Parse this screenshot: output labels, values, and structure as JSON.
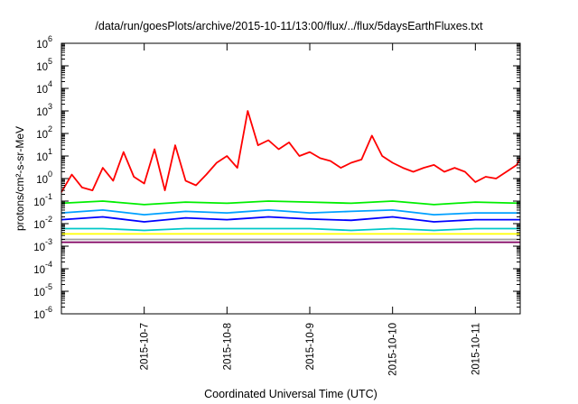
{
  "chart_data": {
    "type": "line",
    "title": "/data/run/goesPlots/archive/2015-10-11/13:00/flux/../flux/5daysEarthFluxes.txt",
    "xlabel": "Coordinated Universal Time (UTC)",
    "ylabel": "protons/cm²-s-sr-MeV",
    "yscale": "log",
    "ylim": [
      1e-06,
      1000000.0
    ],
    "xlim": [
      "2015-10-06 00:00",
      "2015-10-11 13:00"
    ],
    "ytick_labels": [
      {
        "mantissa": "10",
        "exponent": "-6"
      },
      {
        "mantissa": "10",
        "exponent": "-5"
      },
      {
        "mantissa": "10",
        "exponent": "-4"
      },
      {
        "mantissa": "10",
        "exponent": "-3"
      },
      {
        "mantissa": "10",
        "exponent": "-2"
      },
      {
        "mantissa": "10",
        "exponent": "-1"
      },
      {
        "mantissa": "10",
        "exponent": "0"
      },
      {
        "mantissa": "10",
        "exponent": "1"
      },
      {
        "mantissa": "10",
        "exponent": "2"
      },
      {
        "mantissa": "10",
        "exponent": "3"
      },
      {
        "mantissa": "10",
        "exponent": "4"
      },
      {
        "mantissa": "10",
        "exponent": "5"
      },
      {
        "mantissa": "10",
        "exponent": "6"
      }
    ],
    "x_ticks": [
      "2015-10-7",
      "2015-10-8",
      "2015-10-9",
      "2015-10-10",
      "2015-10-11"
    ],
    "grid": false,
    "legend": "none",
    "series": [
      {
        "color": "#ff0000",
        "x": [
          "2015-10-06 00:00",
          "2015-10-06 03:00",
          "2015-10-06 06:00",
          "2015-10-06 09:00",
          "2015-10-06 12:00",
          "2015-10-06 15:00",
          "2015-10-06 18:00",
          "2015-10-06 21:00",
          "2015-10-07 00:00",
          "2015-10-07 03:00",
          "2015-10-07 06:00",
          "2015-10-07 09:00",
          "2015-10-07 12:00",
          "2015-10-07 15:00",
          "2015-10-07 18:00",
          "2015-10-07 21:00",
          "2015-10-08 00:00",
          "2015-10-08 03:00",
          "2015-10-08 06:00",
          "2015-10-08 09:00",
          "2015-10-08 12:00",
          "2015-10-08 15:00",
          "2015-10-08 18:00",
          "2015-10-08 21:00",
          "2015-10-09 00:00",
          "2015-10-09 03:00",
          "2015-10-09 06:00",
          "2015-10-09 09:00",
          "2015-10-09 12:00",
          "2015-10-09 15:00",
          "2015-10-09 18:00",
          "2015-10-09 21:00",
          "2015-10-10 00:00",
          "2015-10-10 03:00",
          "2015-10-10 06:00",
          "2015-10-10 09:00",
          "2015-10-10 12:00",
          "2015-10-10 15:00",
          "2015-10-10 18:00",
          "2015-10-10 21:00",
          "2015-10-11 00:00",
          "2015-10-11 03:00",
          "2015-10-11 06:00",
          "2015-10-11 09:00",
          "2015-10-11 12:00",
          "2015-10-11 13:00"
        ],
        "values": [
          0.25,
          1.5,
          0.4,
          0.3,
          3,
          0.8,
          15,
          1.2,
          0.6,
          20,
          0.3,
          30,
          0.8,
          0.5,
          1.5,
          5,
          10,
          3,
          1000,
          30,
          50,
          20,
          40,
          10,
          15,
          8,
          6,
          3,
          5,
          7,
          80,
          10,
          5,
          3,
          2,
          3,
          4,
          2,
          3,
          2,
          0.7,
          1.2,
          1,
          2,
          4,
          8
        ]
      },
      {
        "color": "#00ee00",
        "x": [
          "2015-10-06 00:00",
          "2015-10-06 12:00",
          "2015-10-07 00:00",
          "2015-10-07 12:00",
          "2015-10-08 00:00",
          "2015-10-08 12:00",
          "2015-10-09 00:00",
          "2015-10-09 12:00",
          "2015-10-10 00:00",
          "2015-10-10 12:00",
          "2015-10-11 00:00",
          "2015-10-11 13:00"
        ],
        "values": [
          0.08,
          0.1,
          0.07,
          0.09,
          0.08,
          0.1,
          0.09,
          0.08,
          0.1,
          0.07,
          0.09,
          0.08
        ]
      },
      {
        "color": "#00a0ff",
        "x": [
          "2015-10-06 00:00",
          "2015-10-06 12:00",
          "2015-10-07 00:00",
          "2015-10-07 12:00",
          "2015-10-08 00:00",
          "2015-10-08 12:00",
          "2015-10-09 00:00",
          "2015-10-09 12:00",
          "2015-10-10 00:00",
          "2015-10-10 12:00",
          "2015-10-11 00:00",
          "2015-10-11 13:00"
        ],
        "values": [
          0.03,
          0.04,
          0.025,
          0.035,
          0.03,
          0.04,
          0.03,
          0.035,
          0.04,
          0.025,
          0.03,
          0.03
        ]
      },
      {
        "color": "#0000ff",
        "x": [
          "2015-10-06 00:00",
          "2015-10-06 12:00",
          "2015-10-07 00:00",
          "2015-10-07 12:00",
          "2015-10-08 00:00",
          "2015-10-08 12:00",
          "2015-10-09 00:00",
          "2015-10-09 12:00",
          "2015-10-10 00:00",
          "2015-10-10 12:00",
          "2015-10-11 00:00",
          "2015-10-11 13:00"
        ],
        "values": [
          0.015,
          0.02,
          0.012,
          0.018,
          0.015,
          0.02,
          0.016,
          0.014,
          0.02,
          0.012,
          0.015,
          0.015
        ]
      },
      {
        "color": "#00c8c8",
        "x": [
          "2015-10-06 00:00",
          "2015-10-06 12:00",
          "2015-10-07 00:00",
          "2015-10-07 12:00",
          "2015-10-08 00:00",
          "2015-10-08 12:00",
          "2015-10-09 00:00",
          "2015-10-09 12:00",
          "2015-10-10 00:00",
          "2015-10-10 12:00",
          "2015-10-11 00:00",
          "2015-10-11 13:00"
        ],
        "values": [
          0.006,
          0.006,
          0.005,
          0.006,
          0.006,
          0.006,
          0.006,
          0.005,
          0.006,
          0.005,
          0.006,
          0.006
        ]
      },
      {
        "color": "#ffff00",
        "x": [
          "2015-10-06 00:00",
          "2015-10-06 12:00",
          "2015-10-07 00:00",
          "2015-10-07 12:00",
          "2015-10-08 00:00",
          "2015-10-08 12:00",
          "2015-10-09 00:00",
          "2015-10-09 12:00",
          "2015-10-10 00:00",
          "2015-10-10 12:00",
          "2015-10-11 00:00",
          "2015-10-11 13:00"
        ],
        "values": [
          0.0035,
          0.0035,
          0.0035,
          0.0035,
          0.0035,
          0.0035,
          0.0035,
          0.0035,
          0.0035,
          0.0035,
          0.0035,
          0.0035
        ]
      },
      {
        "color": "#a0a0a0",
        "x": [
          "2015-10-06 00:00",
          "2015-10-06 12:00",
          "2015-10-07 00:00",
          "2015-10-07 12:00",
          "2015-10-08 00:00",
          "2015-10-08 12:00",
          "2015-10-09 00:00",
          "2015-10-09 12:00",
          "2015-10-10 00:00",
          "2015-10-10 12:00",
          "2015-10-11 00:00",
          "2015-10-11 13:00"
        ],
        "values": [
          0.002,
          0.002,
          0.002,
          0.002,
          0.002,
          0.002,
          0.002,
          0.002,
          0.002,
          0.002,
          0.002,
          0.002
        ]
      },
      {
        "color": "#800060",
        "x": [
          "2015-10-06 00:00",
          "2015-10-06 12:00",
          "2015-10-07 00:00",
          "2015-10-07 12:00",
          "2015-10-08 00:00",
          "2015-10-08 12:00",
          "2015-10-09 00:00",
          "2015-10-09 12:00",
          "2015-10-10 00:00",
          "2015-10-10 12:00",
          "2015-10-11 00:00",
          "2015-10-11 13:00"
        ],
        "values": [
          0.0015,
          0.0015,
          0.0015,
          0.0015,
          0.0015,
          0.0015,
          0.0015,
          0.0015,
          0.0015,
          0.0015,
          0.0015,
          0.0015
        ]
      }
    ]
  }
}
